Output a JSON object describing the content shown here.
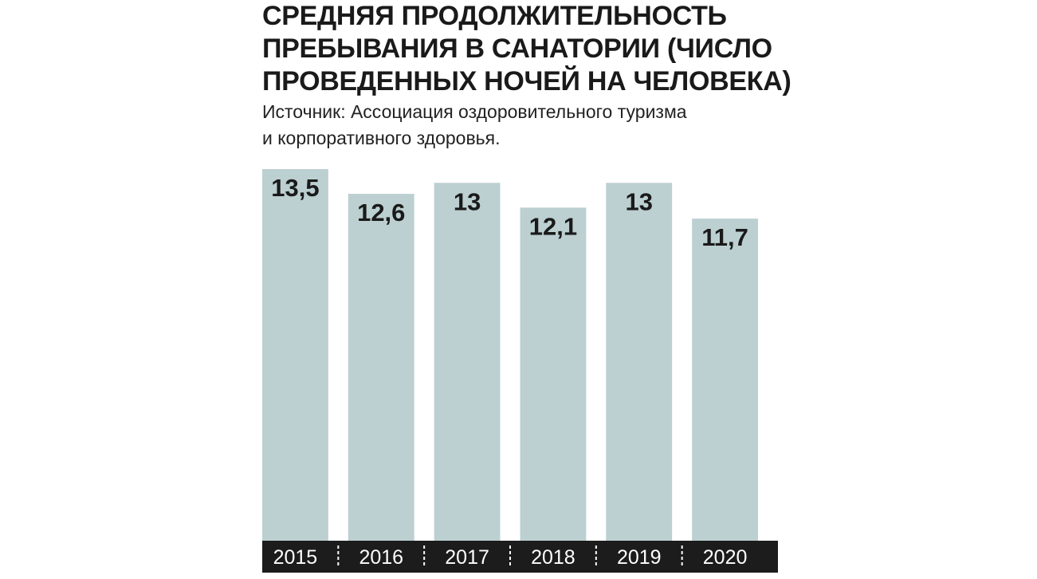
{
  "chart_data": {
    "type": "bar",
    "title_lines": [
      "СРЕДНЯЯ ПРОДОЛЖИТЕЛЬНОСТЬ",
      "ПРЕБЫВАНИЯ В САНАТОРИИ (ЧИСЛО",
      "ПРОВЕДЕННЫХ НОЧЕЙ НА ЧЕЛОВЕКА)"
    ],
    "subtitle_lines": [
      "Источник: Ассоциация оздоровительного туризма",
      "и корпоративного здоровья."
    ],
    "categories": [
      "2015",
      "2016",
      "2017",
      "2018",
      "2019",
      "2020"
    ],
    "values": [
      13.5,
      12.6,
      13,
      12.1,
      13,
      11.7
    ],
    "value_labels": [
      "13,5",
      "12,6",
      "13",
      "12,1",
      "13",
      "11,7"
    ],
    "ylim": [
      0,
      13.5
    ],
    "grid": false,
    "legend": "none",
    "colors": {
      "bar": "#bccfd1",
      "axis_band": "#1c1c1c",
      "axis_text": "#ffffff",
      "separator": "#ffffff"
    }
  }
}
